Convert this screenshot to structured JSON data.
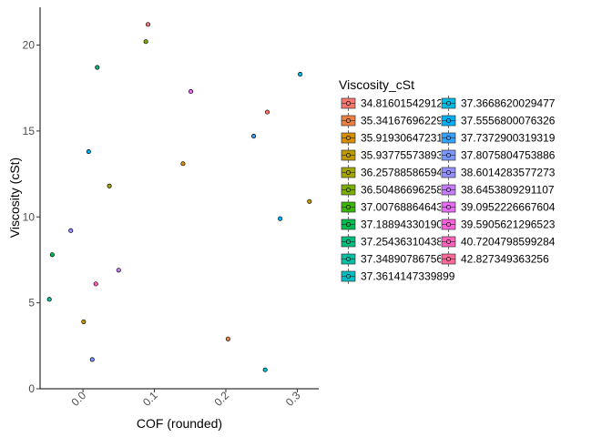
{
  "chart_data": {
    "type": "scatter",
    "title": "",
    "xlabel": "COF (rounded)",
    "ylabel": "Viscosity (cSt)",
    "xlim": [
      -0.06,
      0.33
    ],
    "ylim": [
      0,
      22.2
    ],
    "xticks": [
      0.0,
      0.1,
      0.2,
      0.3
    ],
    "xtick_labels": [
      "0.0",
      "0.1",
      "0.2",
      "0.3"
    ],
    "yticks": [
      0,
      5,
      10,
      15,
      20
    ],
    "ytick_labels": [
      "0",
      "5",
      "10",
      "15",
      "20"
    ],
    "grid": false,
    "legend": {
      "title": "Viscosity_cSt",
      "position": "right",
      "columns": 2,
      "entries": [
        {
          "label": "34.8160154291222",
          "color": "#F8766D"
        },
        {
          "label": "35.341676962293",
          "color": "#EE8041"
        },
        {
          "label": "35.9193064723158",
          "color": "#D89000"
        },
        {
          "label": "35.9377557389318",
          "color": "#C09B00"
        },
        {
          "label": "36.2578858659477",
          "color": "#A3A500"
        },
        {
          "label": "36.5048669625852",
          "color": "#7CAE00"
        },
        {
          "label": "37.0076886464358",
          "color": "#39B600"
        },
        {
          "label": "37.1889433019072",
          "color": "#00BB4E"
        },
        {
          "label": "37.2543631043806",
          "color": "#00BF7D"
        },
        {
          "label": "37.3489078675605",
          "color": "#00C1A3"
        },
        {
          "label": "37.3614147339899",
          "color": "#00BFC4"
        },
        {
          "label": "37.3668620029477",
          "color": "#00BAE0"
        },
        {
          "label": "37.5556800076326",
          "color": "#00B0F6"
        },
        {
          "label": "37.7372900319319",
          "color": "#35A2FF"
        },
        {
          "label": "37.8075804753886",
          "color": "#7997FF"
        },
        {
          "label": "38.6014283577273",
          "color": "#9590FF"
        },
        {
          "label": "38.6453809291107",
          "color": "#C77CFF"
        },
        {
          "label": "39.0952226667604",
          "color": "#E76BF3"
        },
        {
          "label": "39.5905621296523",
          "color": "#FA62DB"
        },
        {
          "label": "40.7204798599284",
          "color": "#FF62BC"
        },
        {
          "label": "42.827349363256",
          "color": "#FF6A98"
        }
      ]
    },
    "points": [
      {
        "x": 0.091,
        "y": 21.2,
        "color": "#F8766D"
      },
      {
        "x": 0.088,
        "y": 20.2,
        "color": "#7CAE00"
      },
      {
        "x": 0.02,
        "y": 18.7,
        "color": "#00BF7D"
      },
      {
        "x": 0.304,
        "y": 18.3,
        "color": "#00BAE0"
      },
      {
        "x": 0.151,
        "y": 17.3,
        "color": "#E76BF3"
      },
      {
        "x": 0.258,
        "y": 16.1,
        "color": "#F8766D"
      },
      {
        "x": 0.239,
        "y": 14.7,
        "color": "#35A2FF"
      },
      {
        "x": 0.008,
        "y": 13.8,
        "color": "#00B0F6"
      },
      {
        "x": 0.14,
        "y": 13.1,
        "color": "#D89000"
      },
      {
        "x": 0.037,
        "y": 11.8,
        "color": "#A3A500"
      },
      {
        "x": 0.317,
        "y": 10.9,
        "color": "#C09B00"
      },
      {
        "x": 0.276,
        "y": 9.9,
        "color": "#00B0F6"
      },
      {
        "x": -0.017,
        "y": 9.2,
        "color": "#9590FF"
      },
      {
        "x": -0.043,
        "y": 7.8,
        "color": "#00BB4E"
      },
      {
        "x": 0.05,
        "y": 6.9,
        "color": "#C77CFF"
      },
      {
        "x": 0.018,
        "y": 6.1,
        "color": "#FF62BC"
      },
      {
        "x": -0.047,
        "y": 5.2,
        "color": "#00C1A3"
      },
      {
        "x": 0.001,
        "y": 3.9,
        "color": "#C09B00"
      },
      {
        "x": 0.203,
        "y": 2.9,
        "color": "#EE8041"
      },
      {
        "x": 0.013,
        "y": 1.7,
        "color": "#7997FF"
      },
      {
        "x": 0.255,
        "y": 1.1,
        "color": "#00BFC4"
      }
    ]
  }
}
